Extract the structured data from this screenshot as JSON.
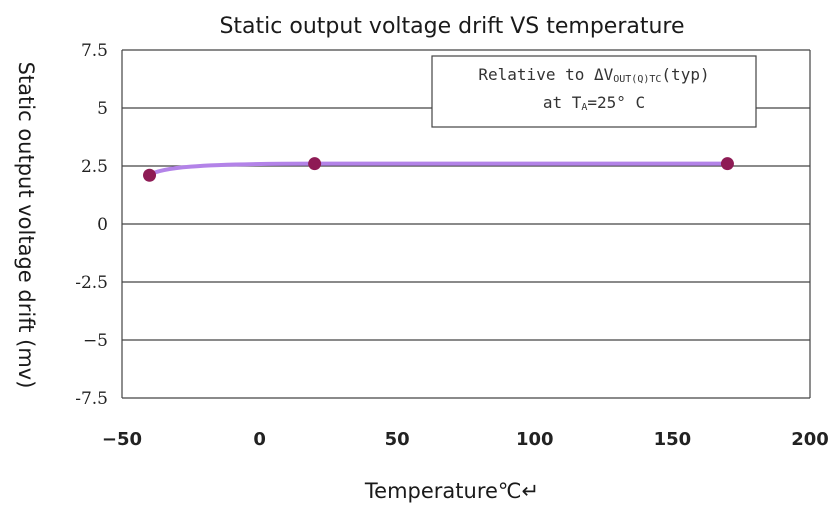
{
  "chart_data": {
    "type": "line",
    "title": "Static output voltage drift VS temperature",
    "xlabel": "Temperature℃↵",
    "ylabel": "Static output voltage drift (mv)",
    "xlim": [
      -50,
      200
    ],
    "ylim": [
      -7.5,
      7.5
    ],
    "x_ticks": [
      -50,
      0,
      50,
      100,
      150,
      200
    ],
    "x_tick_labels": [
      "−50",
      "0",
      "50",
      "100",
      "150",
      "200"
    ],
    "y_ticks": [
      7.5,
      5,
      2.5,
      0,
      -2.5,
      -5,
      -7.5
    ],
    "y_tick_labels": [
      "7.5",
      "5",
      "2.5",
      "0",
      "-2.5",
      "−5",
      "-7.5"
    ],
    "grid": "horizontal",
    "legend_box": {
      "line1": "Relative to ΔVₒᵤₜ(Q)TC(typ)",
      "line1_main": "Relative to ΔV",
      "line1_sub": "OUT(Q)TC",
      "line1_tail": "(typ)",
      "line2_main": "at T",
      "line2_sub": "A",
      "line2_tail": "=25° C",
      "placement": "top-right"
    },
    "series": [
      {
        "x": [
          -40,
          20,
          170
        ],
        "y": [
          2.1,
          2.6,
          2.6
        ],
        "line_color": "#b383e8",
        "marker_color": "#8e1b55"
      }
    ]
  }
}
